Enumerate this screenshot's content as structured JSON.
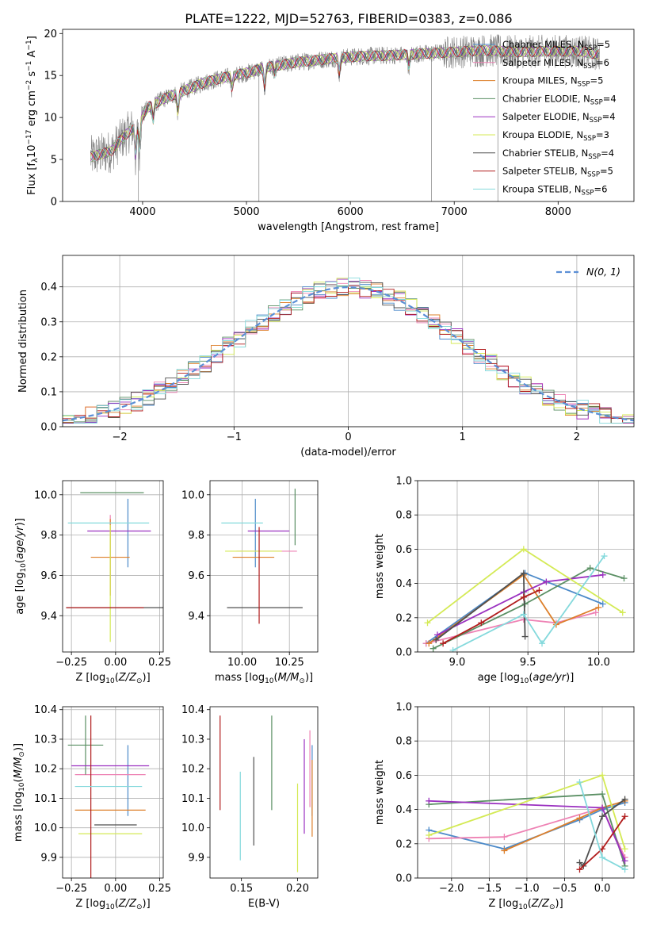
{
  "figure": {
    "title": "PLATE=1222, MJD=52763, FIBERID=0383, z=0.086"
  },
  "models": [
    {
      "label": "Chabrier MILES, N_SSP=5",
      "prefix": "Chabrier MILES, N",
      "sub": "SSP",
      "suffix": "=5",
      "color": "#4c8ac9"
    },
    {
      "label": "Salpeter MILES, N_SSP=6",
      "prefix": "Salpeter MILES, N",
      "sub": "SSP",
      "suffix": "=6",
      "color": "#ee82b4"
    },
    {
      "label": "Kroupa MILES, N_SSP=5",
      "prefix": "Kroupa MILES, N",
      "sub": "SSP",
      "suffix": "=5",
      "color": "#dd7f2a"
    },
    {
      "label": "Chabrier ELODIE, N_SSP=4",
      "prefix": "Chabrier ELODIE, N",
      "sub": "SSP",
      "suffix": "=4",
      "color": "#5a8f63"
    },
    {
      "label": "Salpeter ELODIE, N_SSP=4",
      "prefix": "Salpeter ELODIE, N",
      "sub": "SSP",
      "suffix": "=4",
      "color": "#9b31c0"
    },
    {
      "label": "Kroupa ELODIE, N_SSP=3",
      "prefix": "Kroupa ELODIE, N",
      "sub": "SSP",
      "suffix": "=3",
      "color": "#d4ea55"
    },
    {
      "label": "Chabrier STELIB, N_SSP=4",
      "prefix": "Chabrier STELIB, N",
      "sub": "SSP",
      "suffix": "=4",
      "color": "#4f4f4f"
    },
    {
      "label": "Salpeter STELIB, N_SSP=5",
      "prefix": "Salpeter STELIB, N",
      "sub": "SSP",
      "suffix": "=5",
      "color": "#b11c1c"
    },
    {
      "label": "Kroupa STELIB, N_SSP=6",
      "prefix": "Kroupa STELIB, N",
      "sub": "SSP",
      "suffix": "=6",
      "color": "#84d9dc"
    }
  ],
  "chart_data": [
    {
      "id": "spectrum",
      "type": "line",
      "title": "PLATE=1222, MJD=52763, FIBERID=0383, z=0.086",
      "xlabel": "wavelength [Angstrom, rest frame]",
      "ylabel": "Flux [f_λ 10^-17 erg cm^-2 s^-1 A^-1]",
      "xlim": [
        3230,
        8730
      ],
      "ylim": [
        0,
        20.5
      ],
      "xticks": [
        4000,
        5000,
        6000,
        7000,
        8000
      ],
      "yticks": [
        0,
        5,
        10,
        15,
        20
      ],
      "grid": false,
      "legend": "right",
      "data_color": "#808080",
      "continuum": [
        [
          3500,
          5.3
        ],
        [
          3700,
          6.0
        ],
        [
          3800,
          7.5
        ],
        [
          3950,
          9.2
        ],
        [
          4050,
          11.2
        ],
        [
          4200,
          12.2
        ],
        [
          4400,
          13.2
        ],
        [
          4600,
          14.2
        ],
        [
          4800,
          14.8
        ],
        [
          5000,
          15.3
        ],
        [
          5200,
          16.0
        ],
        [
          5500,
          16.6
        ],
        [
          5800,
          17.0
        ],
        [
          6100,
          17.3
        ],
        [
          6400,
          17.4
        ],
        [
          6700,
          17.6
        ],
        [
          7000,
          17.8
        ],
        [
          7300,
          18.0
        ],
        [
          7600,
          17.8
        ],
        [
          7900,
          17.9
        ],
        [
          8200,
          17.9
        ],
        [
          8400,
          17.5
        ]
      ]
    },
    {
      "id": "residuals",
      "type": "line",
      "xlabel": "(data-model)/error",
      "ylabel": "Normed distribution",
      "xlim": [
        -2.5,
        2.5
      ],
      "ylim": [
        0,
        0.49
      ],
      "xticks": [
        -2,
        -1,
        0,
        1,
        2
      ],
      "yticks": [
        0.0,
        0.1,
        0.2,
        0.3,
        0.4
      ],
      "grid": true,
      "legend_label": "N(0, 1)",
      "legend_color": "#5b8fd6",
      "gaussian_sigma": 1.0,
      "bins": [
        -2.5,
        -2.4,
        -2.3,
        -2.2,
        -2.1,
        -2.0,
        -1.9,
        -1.8,
        -1.7,
        -1.6,
        -1.5,
        -1.4,
        -1.3,
        -1.2,
        -1.1,
        -1.0,
        -0.9,
        -0.8,
        -0.7,
        -0.6,
        -0.5,
        -0.4,
        -0.3,
        -0.2,
        -0.1,
        0.0,
        0.1,
        0.2,
        0.3,
        0.4,
        0.5,
        0.6,
        0.7,
        0.8,
        0.9,
        1.0,
        1.1,
        1.2,
        1.3,
        1.4,
        1.5,
        1.6,
        1.7,
        1.8,
        1.9,
        2.0,
        2.1,
        2.2,
        2.3,
        2.4,
        2.5
      ]
    },
    {
      "id": "age-vs-z",
      "type": "scatter",
      "xlabel": "Z [log10(Z/Z⊙)]",
      "ylabel": "age  [log10(age/yr)]",
      "xlim": [
        -0.3,
        0.27
      ],
      "ylim": [
        9.22,
        10.07
      ],
      "xticks": [
        -0.25,
        0.0,
        0.25
      ],
      "yticks": [
        9.4,
        9.6,
        9.8,
        10.0
      ],
      "grid": true,
      "points": [
        {
          "model": 0,
          "x": 0.07,
          "y": 9.81,
          "xerr": 0.0,
          "yerr": 0.17
        },
        {
          "model": 1,
          "x": -0.03,
          "y": 9.7,
          "xerr": 0.0,
          "yerr": 0.2
        },
        {
          "model": 2,
          "x": -0.03,
          "y": 9.69,
          "xerr": 0.11,
          "yerr": 0.19
        },
        {
          "model": 3,
          "x": -0.02,
          "y": 10.01,
          "xerr": 0.18,
          "yerr": 0.0
        },
        {
          "model": 4,
          "x": 0.02,
          "y": 9.82,
          "xerr": 0.18,
          "yerr": 0.0
        },
        {
          "model": 5,
          "x": -0.03,
          "y": 9.56,
          "xerr": 0.0,
          "yerr": 0.29
        },
        {
          "model": 6,
          "x": 0.0,
          "y": 9.44,
          "xerr": 0.28,
          "yerr": 0.0
        },
        {
          "model": 7,
          "x": -0.06,
          "y": 9.44,
          "xerr": 0.22,
          "yerr": 0.0
        },
        {
          "model": 8,
          "x": -0.04,
          "y": 9.86,
          "xerr": 0.23,
          "yerr": 0.0
        }
      ]
    },
    {
      "id": "age-vs-mass",
      "type": "scatter",
      "xlabel": "mass [log10(M/M⊙)]",
      "ylabel": "",
      "xlim": [
        9.83,
        10.4
      ],
      "ylim": [
        9.22,
        10.07
      ],
      "xticks": [
        10.0,
        10.25
      ],
      "yticks": [
        9.4,
        9.6,
        9.8,
        10.0
      ],
      "grid": true,
      "points": [
        {
          "model": 0,
          "x": 10.07,
          "y": 9.81,
          "xerr": 0.0,
          "yerr": 0.17
        },
        {
          "model": 1,
          "x": 10.13,
          "y": 9.72,
          "xerr": 0.16,
          "yerr": 0.0
        },
        {
          "model": 2,
          "x": 10.06,
          "y": 9.69,
          "xerr": 0.11,
          "yerr": 0.0
        },
        {
          "model": 3,
          "x": 10.28,
          "y": 9.89,
          "xerr": 0.0,
          "yerr": 0.14
        },
        {
          "model": 4,
          "x": 10.14,
          "y": 9.82,
          "xerr": 0.11,
          "yerr": 0.0
        },
        {
          "model": 5,
          "x": 10.06,
          "y": 9.72,
          "xerr": 0.15,
          "yerr": 0.0
        },
        {
          "model": 6,
          "x": 10.12,
          "y": 9.44,
          "xerr": 0.2,
          "yerr": 0.0
        },
        {
          "model": 7,
          "x": 10.09,
          "y": 9.6,
          "xerr": 0.0,
          "yerr": 0.24
        },
        {
          "model": 8,
          "x": 10.0,
          "y": 9.86,
          "xerr": 0.11,
          "yerr": 0.0
        }
      ]
    },
    {
      "id": "weight-vs-age",
      "type": "line",
      "xlabel": "age  [log10(age/yr)]",
      "ylabel": "mass weight",
      "xlim": [
        8.72,
        10.25
      ],
      "ylim": [
        0,
        1.0
      ],
      "xticks": [
        9.0,
        9.5,
        10.0
      ],
      "yticks": [
        0.0,
        0.2,
        0.4,
        0.6,
        0.8,
        1.0
      ],
      "grid": true,
      "series": [
        {
          "model": 0,
          "x": [
            8.78,
            9.48,
            10.03
          ],
          "y": [
            0.05,
            0.46,
            0.28
          ]
        },
        {
          "model": 1,
          "x": [
            8.78,
            9.47,
            9.7,
            9.98
          ],
          "y": [
            0.05,
            0.19,
            0.17,
            0.23
          ]
        },
        {
          "model": 2,
          "x": [
            8.8,
            9.47,
            9.7,
            10.0
          ],
          "y": [
            0.05,
            0.45,
            0.16,
            0.26
          ]
        },
        {
          "model": 3,
          "x": [
            8.83,
            9.48,
            9.94,
            10.18
          ],
          "y": [
            0.02,
            0.28,
            0.49,
            0.43
          ]
        },
        {
          "model": 4,
          "x": [
            8.86,
            9.47,
            9.63,
            10.03
          ],
          "y": [
            0.1,
            0.35,
            0.41,
            0.45
          ]
        },
        {
          "model": 5,
          "x": [
            8.79,
            9.47,
            10.17
          ],
          "y": [
            0.17,
            0.6,
            0.23
          ]
        },
        {
          "model": 6,
          "x": [
            8.85,
            9.47,
            9.48
          ],
          "y": [
            0.07,
            0.46,
            0.09
          ]
        },
        {
          "model": 7,
          "x": [
            8.9,
            9.17,
            9.47,
            9.58
          ],
          "y": [
            0.05,
            0.17,
            0.32,
            0.36
          ]
        },
        {
          "model": 8,
          "x": [
            8.97,
            9.47,
            9.6,
            10.04
          ],
          "y": [
            0.01,
            0.22,
            0.05,
            0.56
          ]
        }
      ]
    },
    {
      "id": "mass-vs-z",
      "type": "scatter",
      "xlabel": "Z [log10(Z/Z⊙)]",
      "ylabel": "mass [log10(M/M⊙)]",
      "xlim": [
        -0.3,
        0.27
      ],
      "ylim": [
        9.83,
        10.41
      ],
      "xticks": [
        -0.25,
        0.0,
        0.25
      ],
      "yticks": [
        9.9,
        10.0,
        10.1,
        10.2,
        10.3,
        10.4
      ],
      "grid": true,
      "points": [
        {
          "model": 0,
          "x": 0.07,
          "y": 10.16,
          "xerr": 0.0,
          "yerr": 0.12
        },
        {
          "model": 1,
          "x": -0.03,
          "y": 10.18,
          "xerr": 0.2,
          "yerr": 0.0
        },
        {
          "model": 2,
          "x": -0.03,
          "y": 10.06,
          "xerr": 0.2,
          "yerr": 0.0
        },
        {
          "model": 3,
          "x": -0.17,
          "y": 10.28,
          "xerr": 0.1,
          "yerr": 0.1
        },
        {
          "model": 4,
          "x": -0.03,
          "y": 10.21,
          "xerr": 0.22,
          "yerr": 0.0
        },
        {
          "model": 5,
          "x": -0.03,
          "y": 9.98,
          "xerr": 0.18,
          "yerr": 0.0
        },
        {
          "model": 6,
          "x": 0.0,
          "y": 10.01,
          "xerr": 0.12,
          "yerr": 0.0
        },
        {
          "model": 7,
          "x": -0.14,
          "y": 10.09,
          "xerr": 0.0,
          "yerr": 0.29
        },
        {
          "model": 8,
          "x": -0.04,
          "y": 10.14,
          "xerr": 0.19,
          "yerr": 0.0
        }
      ]
    },
    {
      "id": "mass-vs-ebv",
      "type": "scatter",
      "xlabel": "E(B-V)",
      "ylabel": "",
      "xlim": [
        0.122,
        0.218
      ],
      "ylim": [
        9.83,
        10.41
      ],
      "xticks": [
        0.15,
        0.2
      ],
      "yticks": [
        9.9,
        10.0,
        10.1,
        10.2,
        10.3,
        10.4
      ],
      "grid": false,
      "points": [
        {
          "model": 0,
          "x": 0.213,
          "y": 10.16,
          "yerr": 0.12
        },
        {
          "model": 1,
          "x": 0.211,
          "y": 10.2,
          "yerr": 0.13
        },
        {
          "model": 2,
          "x": 0.213,
          "y": 10.1,
          "yerr": 0.13
        },
        {
          "model": 3,
          "x": 0.177,
          "y": 10.22,
          "yerr": 0.16
        },
        {
          "model": 4,
          "x": 0.206,
          "y": 10.14,
          "yerr": 0.16
        },
        {
          "model": 5,
          "x": 0.2,
          "y": 10.0,
          "yerr": 0.15
        },
        {
          "model": 6,
          "x": 0.161,
          "y": 10.09,
          "yerr": 0.15
        },
        {
          "model": 7,
          "x": 0.131,
          "y": 10.22,
          "yerr": 0.16
        },
        {
          "model": 8,
          "x": 0.149,
          "y": 10.04,
          "yerr": 0.15
        }
      ]
    },
    {
      "id": "weight-vs-z",
      "type": "line",
      "xlabel": "Z [log10(Z/Z⊙)]",
      "ylabel": "mass weight",
      "xlim": [
        -2.45,
        0.42
      ],
      "ylim": [
        0,
        1.0
      ],
      "xticks": [
        -2.0,
        -1.5,
        -1.0,
        -0.5,
        0.0
      ],
      "yticks": [
        0.0,
        0.2,
        0.4,
        0.6,
        0.8,
        1.0
      ],
      "grid": true,
      "series": [
        {
          "model": 0,
          "x": [
            -2.3,
            -1.3,
            -0.3,
            0.0,
            0.3
          ],
          "y": [
            0.28,
            0.17,
            0.34,
            0.4,
            0.44
          ]
        },
        {
          "model": 1,
          "x": [
            -2.3,
            -1.3,
            0.0,
            0.3
          ],
          "y": [
            0.23,
            0.24,
            0.41,
            0.12
          ]
        },
        {
          "model": 2,
          "x": [
            -1.3,
            -0.3,
            0.0,
            0.3
          ],
          "y": [
            0.16,
            0.35,
            0.41,
            0.45
          ]
        },
        {
          "model": 3,
          "x": [
            -2.3,
            0.0,
            0.3
          ],
          "y": [
            0.43,
            0.49,
            0.07
          ]
        },
        {
          "model": 4,
          "x": [
            -2.3,
            0.0,
            0.3
          ],
          "y": [
            0.45,
            0.41,
            0.1
          ]
        },
        {
          "model": 5,
          "x": [
            -2.3,
            0.0,
            0.3
          ],
          "y": [
            0.25,
            0.6,
            0.17
          ]
        },
        {
          "model": 6,
          "x": [
            -0.3,
            -0.25,
            0.0,
            0.3
          ],
          "y": [
            0.09,
            0.07,
            0.36,
            0.46
          ]
        },
        {
          "model": 7,
          "x": [
            -0.3,
            0.0,
            0.3
          ],
          "y": [
            0.05,
            0.17,
            0.36
          ]
        },
        {
          "model": 8,
          "x": [
            -0.3,
            0.0,
            0.3
          ],
          "y": [
            0.56,
            0.12,
            0.05
          ]
        }
      ]
    }
  ]
}
